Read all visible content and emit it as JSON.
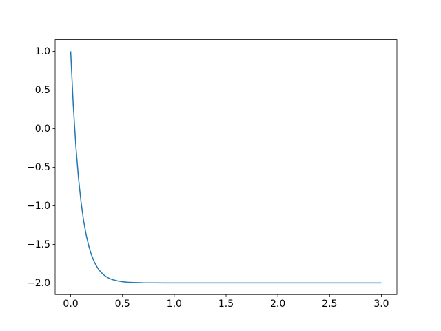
{
  "figure": {
    "background": "#ffffff"
  },
  "chart_data": {
    "type": "line",
    "title": "",
    "xlabel": "",
    "ylabel": "",
    "grid": false,
    "legend": null,
    "axes_background": "#ffffff",
    "spine_color": "#000000",
    "tick_color": "#000000",
    "xlim": [
      -0.15,
      3.15
    ],
    "ylim": [
      -2.15,
      1.15
    ],
    "xticks": {
      "values": [
        0.0,
        0.5,
        1.0,
        1.5,
        2.0,
        2.5,
        3.0
      ],
      "labels": [
        "0.0",
        "0.5",
        "1.0",
        "1.5",
        "2.0",
        "2.5",
        "3.0"
      ]
    },
    "yticks": {
      "values": [
        1.0,
        0.5,
        0.0,
        -0.5,
        -1.0,
        -1.5,
        -2.0
      ],
      "labels": [
        "1.0",
        "0.5",
        "0.0",
        "−0.5",
        "−1.0",
        "−1.5",
        "−2.0"
      ]
    },
    "series": [
      {
        "name": "series-1",
        "color": "#1f77b4",
        "line_width": 1.5,
        "description": "exponential decay y = 3*exp(-10.5x) - 2 from (0, 1.0) to asymptote -2.0",
        "x": [
          0,
          0.025,
          0.05,
          0.075,
          0.1,
          0.125,
          0.15,
          0.175,
          0.2,
          0.225,
          0.25,
          0.275,
          0.3,
          0.325,
          0.35,
          0.375,
          0.4,
          0.45,
          0.5,
          0.55,
          0.6,
          0.7,
          0.8,
          0.9,
          1.0,
          1.25,
          1.5,
          1.75,
          2.0,
          2.25,
          2.5,
          2.75,
          3.0
        ],
        "y": [
          1.0,
          0.307,
          -0.225,
          -0.635,
          -0.95,
          -1.193,
          -1.379,
          -1.522,
          -1.633,
          -1.718,
          -1.783,
          -1.833,
          -1.871,
          -1.901,
          -1.924,
          -1.942,
          -1.955,
          -1.973,
          -1.984,
          -1.991,
          -1.994,
          -1.998,
          -1.999,
          -2.0,
          -2.0,
          -2.0,
          -2.0,
          -2.0,
          -2.0,
          -2.0,
          -2.0,
          -2.0,
          -2.0
        ]
      }
    ]
  }
}
